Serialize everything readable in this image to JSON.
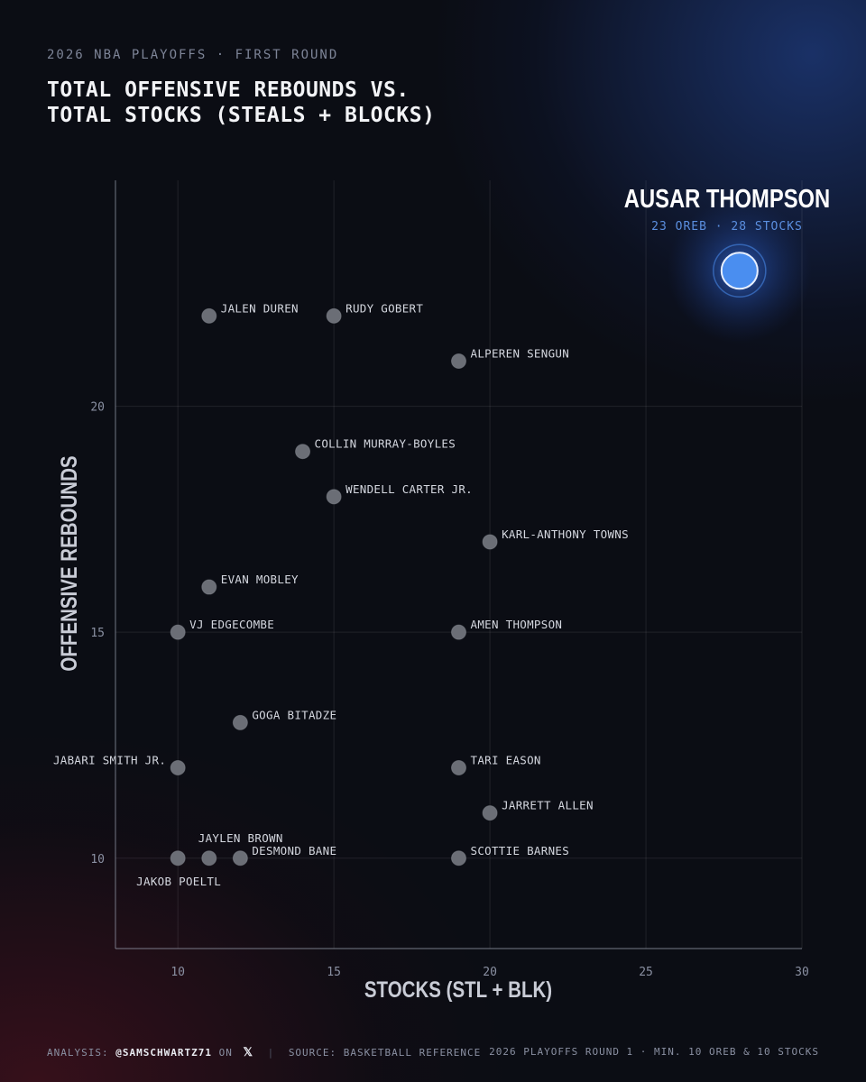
{
  "header": {
    "kicker": "2026 NBA PLAYOFFS · FIRST ROUND",
    "title_line1": "TOTAL OFFENSIVE REBOUNDS VS.",
    "title_line2": "TOTAL STOCKS (STEALS + BLOCKS)"
  },
  "footer": {
    "analysis_label": "ANALYSIS:",
    "handle": "@SAMSCHWARTZ71",
    "on_label": "ON",
    "x_icon": "x-logo-icon",
    "source": "SOURCE: BASKETBALL REFERENCE",
    "note": "2026 PLAYOFFS ROUND 1 · MIN. 10 OREB & 10 STOCKS"
  },
  "chart_data": {
    "type": "scatter",
    "xlabel": "STOCKS (STL + BLK)",
    "ylabel": "OFFENSIVE REBOUNDS",
    "xlim": [
      8,
      30
    ],
    "ylim": [
      8,
      25
    ],
    "xticks": [
      10,
      15,
      20,
      25,
      30
    ],
    "yticks": [
      10,
      15,
      20
    ],
    "grid": true,
    "colors": {
      "point": "#6b6e76",
      "highlight": "#4a8ef0",
      "highlight_text": "#5b8fe0"
    },
    "highlight": {
      "name": "AUSAR THOMPSON",
      "subtitle": "23 OREB · 28 STOCKS",
      "x": 28,
      "y": 23
    },
    "points": [
      {
        "name": "JALEN DUREN",
        "x": 11,
        "y": 22
      },
      {
        "name": "RUDY GOBERT",
        "x": 15,
        "y": 22
      },
      {
        "name": "ALPEREN SENGUN",
        "x": 19,
        "y": 21
      },
      {
        "name": "COLLIN MURRAY-BOYLES",
        "x": 14,
        "y": 19
      },
      {
        "name": "WENDELL CARTER JR.",
        "x": 15,
        "y": 18
      },
      {
        "name": "KARL-ANTHONY TOWNS",
        "x": 20,
        "y": 17
      },
      {
        "name": "EVAN MOBLEY",
        "x": 11,
        "y": 16
      },
      {
        "name": "VJ EDGECOMBE",
        "x": 10,
        "y": 15
      },
      {
        "name": "AMEN THOMPSON",
        "x": 19,
        "y": 15
      },
      {
        "name": "GOGA BITADZE",
        "x": 12,
        "y": 13
      },
      {
        "name": "JABARI SMITH JR.",
        "x": 10,
        "y": 12,
        "label_pos": "left"
      },
      {
        "name": "TARI EASON",
        "x": 19,
        "y": 12
      },
      {
        "name": "JARRETT ALLEN",
        "x": 20,
        "y": 11
      },
      {
        "name": "JAYLEN BROWN",
        "x": 11,
        "y": 10,
        "label_pos": "above"
      },
      {
        "name": "JAKOB POELTL",
        "x": 10,
        "y": 10,
        "label_pos": "below"
      },
      {
        "name": "DESMOND BANE",
        "x": 12,
        "y": 10
      },
      {
        "name": "SCOTTIE BARNES",
        "x": 19,
        "y": 10
      }
    ]
  }
}
